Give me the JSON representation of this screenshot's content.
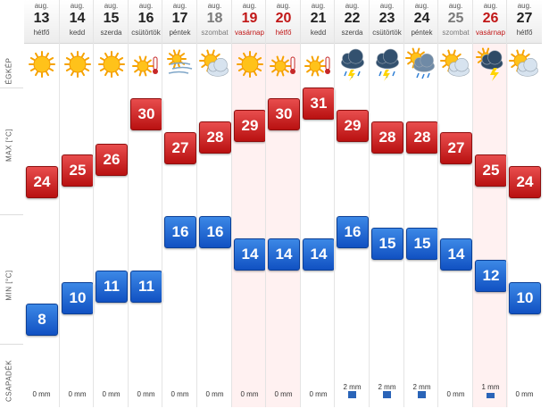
{
  "axis_labels": {
    "sky": "ÉGKÉP",
    "max": "MAX [°C]",
    "min": "MIN [°C]",
    "precip": "CSAPADÉK"
  },
  "chart_data": {
    "type": "forecast-table",
    "month_label": "aug.",
    "days": [
      {
        "day": "13",
        "dow": "hétfő",
        "kind": "weekday",
        "icon": "sunny-icon",
        "max": 24,
        "min": 8,
        "precip": "0 mm",
        "precip_mm": 0
      },
      {
        "day": "14",
        "dow": "kedd",
        "kind": "weekday",
        "icon": "sunny-icon",
        "max": 25,
        "min": 10,
        "precip": "0 mm",
        "precip_mm": 0
      },
      {
        "day": "15",
        "dow": "szerda",
        "kind": "weekday",
        "icon": "sunny-icon",
        "max": 26,
        "min": 11,
        "precip": "0 mm",
        "precip_mm": 0
      },
      {
        "day": "16",
        "dow": "csütörtök",
        "kind": "weekday",
        "icon": "hot-sun-icon",
        "max": 30,
        "min": 11,
        "precip": "0 mm",
        "precip_mm": 0
      },
      {
        "day": "17",
        "dow": "péntek",
        "kind": "weekday",
        "icon": "windy-icon",
        "max": 27,
        "min": 16,
        "precip": "0 mm",
        "precip_mm": 0
      },
      {
        "day": "18",
        "dow": "szombat",
        "kind": "weekend",
        "icon": "partly-cloudy-icon",
        "max": 28,
        "min": 16,
        "precip": "0 mm",
        "precip_mm": 0
      },
      {
        "day": "19",
        "dow": "vasárnap",
        "kind": "holiday",
        "icon": "sunny-icon",
        "max": 29,
        "min": 14,
        "precip": "0 mm",
        "precip_mm": 0
      },
      {
        "day": "20",
        "dow": "hétfő",
        "kind": "holiday",
        "icon": "hot-sun-icon",
        "max": 30,
        "min": 14,
        "precip": "0 mm",
        "precip_mm": 0
      },
      {
        "day": "21",
        "dow": "kedd",
        "kind": "weekday",
        "icon": "hot-sun-icon",
        "max": 31,
        "min": 14,
        "precip": "0 mm",
        "precip_mm": 0
      },
      {
        "day": "22",
        "dow": "szerda",
        "kind": "weekday",
        "icon": "thunderstorm-icon",
        "max": 29,
        "min": 16,
        "precip": "2 mm",
        "precip_mm": 2
      },
      {
        "day": "23",
        "dow": "csütörtök",
        "kind": "weekday",
        "icon": "thunderstorm-icon",
        "max": 28,
        "min": 15,
        "precip": "2 mm",
        "precip_mm": 2
      },
      {
        "day": "24",
        "dow": "péntek",
        "kind": "weekday",
        "icon": "sun-cloud-rain-icon",
        "max": 28,
        "min": 15,
        "precip": "2 mm",
        "precip_mm": 2
      },
      {
        "day": "25",
        "dow": "szombat",
        "kind": "weekend",
        "icon": "partly-cloudy-icon",
        "max": 27,
        "min": 14,
        "precip": "0 mm",
        "precip_mm": 0
      },
      {
        "day": "26",
        "dow": "vasárnap",
        "kind": "holiday",
        "icon": "storm-lightning-icon",
        "max": 25,
        "min": 12,
        "precip": "1 mm",
        "precip_mm": 1
      },
      {
        "day": "27",
        "dow": "hétfő",
        "kind": "weekday",
        "icon": "partly-cloudy-icon",
        "max": 24,
        "min": 10,
        "precip": "0 mm",
        "precip_mm": 0
      }
    ]
  },
  "colors": {
    "max_tile": "#d22a2a",
    "min_tile": "#1f66d3",
    "holiday_text": "#c11717",
    "holiday_bg": "#fff1f1",
    "precip_bar": "#2a64b8"
  }
}
